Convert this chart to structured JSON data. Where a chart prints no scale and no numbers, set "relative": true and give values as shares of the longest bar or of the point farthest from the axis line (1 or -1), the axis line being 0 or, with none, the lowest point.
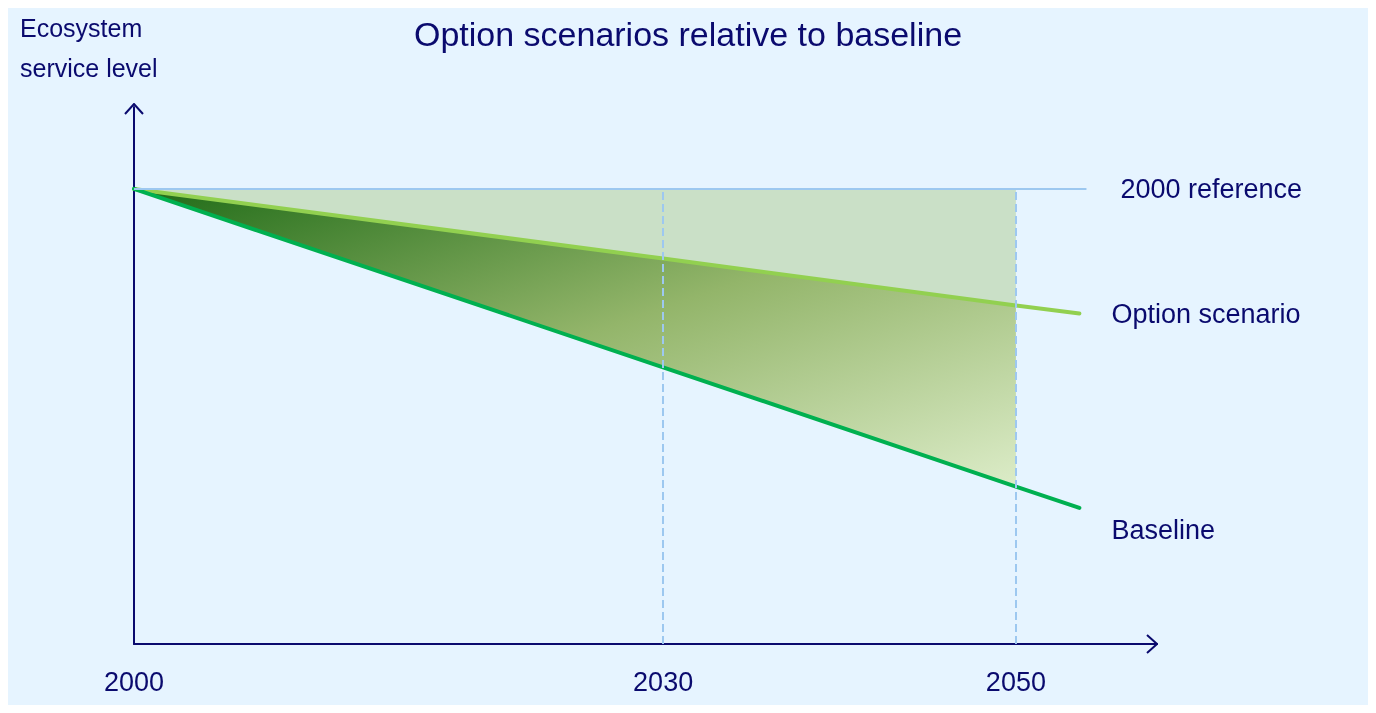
{
  "chart_data": {
    "type": "line",
    "title": "Option scenarios relative to baseline",
    "ylabel": "Ecosystem\nservice level",
    "relative": true,
    "xlim": [
      2000,
      2058
    ],
    "xticks": [
      2000,
      2030,
      2050
    ],
    "grid": false,
    "legend": false,
    "marker": "none",
    "line_style": "solid",
    "series": [
      {
        "name": "Option scenario",
        "color": "#92d050",
        "x": [
          2000,
          2030,
          2050,
          2053.6
        ],
        "values": [
          1,
          0.847,
          0.744,
          0.726
        ],
        "lower": [
          1,
          0.847,
          0.744,
          null
        ],
        "upper": [
          1,
          1,
          1,
          null
        ]
      },
      {
        "name": "Baseline",
        "color": "#00b050",
        "x": [
          2000,
          2030,
          2050,
          2053.6
        ],
        "values": [
          1,
          0.608,
          0.346,
          0.299
        ],
        "lower": [
          1,
          0.608,
          0.346,
          null
        ],
        "upper": [
          1,
          0.847,
          0.744,
          null
        ]
      }
    ],
    "ref_lines": [
      {
        "axis": "y",
        "value": 1,
        "label": "2000 reference",
        "color": "#9dc8f0",
        "line_style": "solid"
      },
      {
        "axis": "x",
        "value": 2030,
        "label": null,
        "color": "#9dc8f0",
        "line_style": "dashed"
      },
      {
        "axis": "x",
        "value": 2050,
        "label": null,
        "color": "#9dc8f0",
        "line_style": "dashed"
      }
    ]
  }
}
